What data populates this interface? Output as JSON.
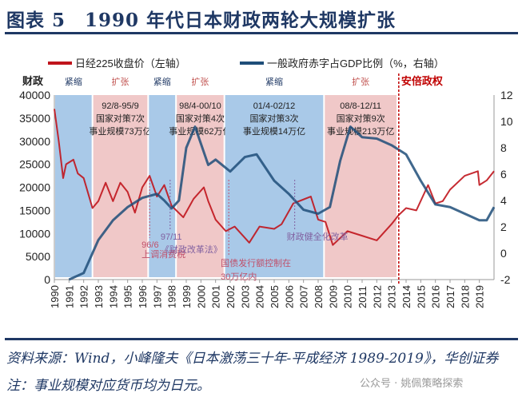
{
  "title": "图表 5　1990 年代日本财政两轮大规模扩张",
  "source": "资料来源：Wind，小峰隆夫《日本激荡三十年-平成经济 1989-2019》，华创证券  注：事业规模对应货币均为日元。",
  "watermark": "公众号 · 姚佩策略探索",
  "chart_data": {
    "type": "line",
    "legend_position": "top",
    "series": [
      {
        "name": "日经225收盘价（左轴）",
        "axis": "left",
        "color": "#c0141c",
        "x": [
          1990.0,
          1990.3,
          1990.6,
          1990.8,
          1991.3,
          1991.6,
          1992.0,
          1992.6,
          1993.0,
          1993.5,
          1994.0,
          1994.5,
          1995.0,
          1995.5,
          1996.0,
          1996.5,
          1997.0,
          1997.5,
          1998.0,
          1998.8,
          1999.5,
          2000.2,
          2000.5,
          2001.0,
          2001.7,
          2002.3,
          2003.3,
          2004.0,
          2005.0,
          2005.5,
          2006.3,
          2007.5,
          2008.0,
          2008.5,
          2009.0,
          2010.0,
          2011.0,
          2012.0,
          2013.0,
          2013.5,
          2014.0,
          2014.7,
          2015.5,
          2016.0,
          2016.5,
          2017.0,
          2018.0,
          2018.9,
          2019.0,
          2019.5,
          2020.0
        ],
        "values": [
          37000,
          30000,
          22000,
          25000,
          26000,
          23000,
          22000,
          15500,
          17000,
          21000,
          17000,
          21000,
          19000,
          14500,
          20000,
          22500,
          18000,
          20500,
          16000,
          13500,
          17500,
          20000,
          17000,
          13000,
          10500,
          11500,
          8000,
          11500,
          11000,
          12000,
          16500,
          18000,
          13000,
          12500,
          7500,
          10500,
          9500,
          8500,
          12000,
          14000,
          15500,
          15000,
          20500,
          16500,
          17000,
          19500,
          22500,
          23500,
          20500,
          21500,
          23500
        ]
      },
      {
        "name": "一般政府赤字占GDP比例（%，右轴）",
        "axis": "right",
        "color": "#1f4e79",
        "x": [
          1991.0,
          1992.0,
          1993.0,
          1994.0,
          1995.0,
          1996.0,
          1997.0,
          1997.5,
          1998.0,
          1998.5,
          1999.0,
          1999.6,
          2000.5,
          2001.0,
          2002.0,
          2003.0,
          2003.8,
          2005.0,
          2006.0,
          2007.0,
          2008.0,
          2008.8,
          2009.5,
          2010.2,
          2011.0,
          2012.0,
          2013.0,
          2014.0,
          2015.0,
          2016.0,
          2017.0,
          2018.0,
          2019.0,
          2019.5,
          2020.0
        ],
        "values": [
          -2,
          -1.5,
          1,
          2.5,
          3.5,
          4.2,
          4.5,
          4.0,
          3.4,
          4.0,
          8,
          9.6,
          6.7,
          7.1,
          6.2,
          7.3,
          7.5,
          5.5,
          4.5,
          3.3,
          3.0,
          3.5,
          7,
          9.6,
          8.8,
          8.7,
          8.2,
          7.5,
          5.5,
          3.7,
          3.5,
          3.0,
          2.5,
          2.5,
          3.5
        ]
      }
    ],
    "xlim": [
      1990,
      2020
    ],
    "x_ticks": [
      "1990",
      "1991",
      "1992",
      "1993",
      "1994",
      "1995",
      "1996",
      "1997",
      "1998",
      "1999",
      "2000",
      "2001",
      "2002",
      "2003",
      "2004",
      "2005",
      "2006",
      "2007",
      "2008",
      "2009",
      "2010",
      "2011",
      "2012",
      "2013",
      "2014",
      "2015",
      "2016",
      "2017",
      "2018",
      "2019"
    ],
    "y_left": {
      "label": "财政",
      "lim": [
        0,
        40000
      ],
      "ticks": [
        "0",
        "5000",
        "10000",
        "15000",
        "20000",
        "25000",
        "30000",
        "35000",
        "40000"
      ]
    },
    "y_right": {
      "lim": [
        -2,
        12
      ],
      "ticks": [
        "-2",
        "0",
        "2",
        "4",
        "6",
        "8",
        "10",
        "12"
      ]
    },
    "bands": [
      {
        "from": 1990.0,
        "to": 1992.6,
        "type": "tight",
        "label": "紧缩",
        "color": "#a9c9e8"
      },
      {
        "from": 1992.6,
        "to": 1996.4,
        "type": "expand",
        "label": "扩张",
        "color": "#f0c8c8",
        "note": [
          "92/8-95/9",
          "国家对策7次",
          "事业规模73万亿"
        ]
      },
      {
        "from": 1996.4,
        "to": 1998.3,
        "type": "tight",
        "label": "紧缩",
        "color": "#a9c9e8"
      },
      {
        "from": 1998.3,
        "to": 2001.6,
        "type": "expand",
        "label": "扩张",
        "color": "#f0c8c8",
        "note": [
          "98/4-00/10",
          "国家对策4次",
          "事业规模62万亿"
        ]
      },
      {
        "from": 2001.6,
        "to": 2008.4,
        "type": "tight",
        "label": "紧缩",
        "color": "#a9c9e8",
        "note": [
          "01/4-02/12",
          "国家对策3次",
          "事业规模14万亿"
        ]
      },
      {
        "from": 2008.4,
        "to": 2013.4,
        "type": "expand",
        "label": "扩张",
        "color": "#f0c8c8",
        "note": [
          "08/8-12/11",
          "国家对策9次",
          "事业规模213万亿"
        ]
      }
    ],
    "abe_line": {
      "x": 2013.5,
      "label": "安倍政权",
      "color": "#c00000"
    },
    "annotations": [
      {
        "x": 1996.5,
        "lines": [
          "96/6",
          "上调消费税"
        ],
        "color": "#c0506a"
      },
      {
        "x": 1997.9,
        "lines": [
          "97/11",
          "《财政改革法》"
        ],
        "color": "#8060a0"
      },
      {
        "x": 2001.9,
        "lines": [
          "国债发行额控制在",
          "30万亿内"
        ],
        "color": "#c0506a"
      },
      {
        "x": 2006.4,
        "lines": [
          "财政健全化改革"
        ],
        "color": "#8060a0"
      }
    ]
  }
}
